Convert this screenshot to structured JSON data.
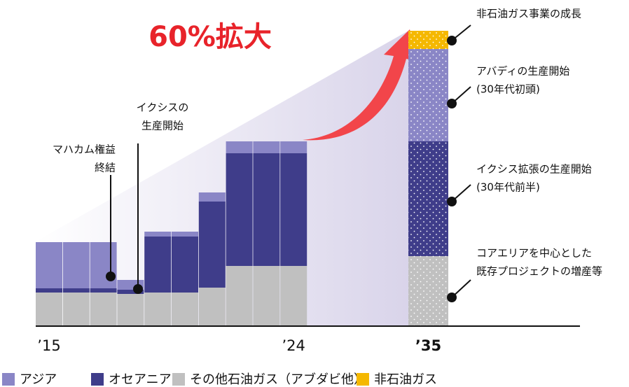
{
  "chart_data": {
    "type": "bar",
    "stacked": true,
    "categories": [
      "’15",
      null,
      null,
      null,
      null,
      null,
      null,
      null,
      null,
      "’24",
      "’35"
    ],
    "series": [
      {
        "name": "アジア",
        "color": "#8a86c6",
        "values": [
          16.5,
          16.5,
          16.5,
          3.5,
          1.75,
          1.75,
          3.25,
          4.25,
          4.25,
          4.25,
          33
        ]
      },
      {
        "name": "オセアニア",
        "color": "#3f3d8a",
        "values": [
          1.5,
          1.5,
          1.5,
          1.5,
          20,
          20,
          30.75,
          40.25,
          40.25,
          40.25,
          41
        ]
      },
      {
        "name": "その他石油ガス（アブダビ他）",
        "color": "#c0c0c0",
        "values": [
          12,
          12,
          12,
          11.5,
          12,
          12,
          13.75,
          21.5,
          21.5,
          21.5,
          25
        ]
      },
      {
        "name": "非石油ガス",
        "color": "#f5b800",
        "values": [
          0,
          0,
          0,
          0,
          0,
          0,
          0,
          0,
          0,
          0,
          6.5
        ]
      }
    ],
    "ylim": [
      0,
      110
    ],
    "headline": "60%拡大",
    "annotations": [
      {
        "lines": [
          "マハカム権益",
          "終結"
        ]
      },
      {
        "lines": [
          "イクシスの",
          "生産開始"
        ]
      },
      {
        "lines": [
          "非石油ガス事業の成長"
        ]
      },
      {
        "lines": [
          "アバディの生産開始",
          "(30年代初頭)"
        ]
      },
      {
        "lines": [
          "イクシス拡張の生産開始",
          "(30年代前半)"
        ]
      },
      {
        "lines": [
          "コアエリアを中心とした",
          "既存プロジェクトの増産等"
        ]
      }
    ]
  }
}
